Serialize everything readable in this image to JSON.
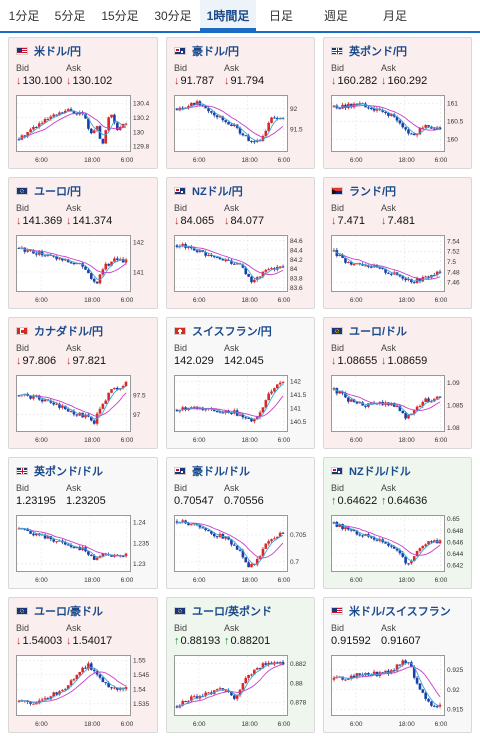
{
  "tabs": [
    {
      "label": "1分足",
      "active": false
    },
    {
      "label": "5分足",
      "active": false
    },
    {
      "label": "15分足",
      "active": false
    },
    {
      "label": "30分足",
      "active": false
    },
    {
      "label": "1時間足",
      "active": true
    },
    {
      "label": "日足",
      "active": false
    },
    {
      "label": "週足",
      "active": false
    },
    {
      "label": "月足",
      "active": false
    }
  ],
  "labels": {
    "bid": "Bid",
    "ask": "Ask"
  },
  "colors": {
    "up_candle": "#d8282a",
    "down_candle": "#1a3fa8",
    "ma_line": "#c83fc8",
    "down_card_bg": "#fbeeee",
    "up_card_bg": "#eef6ee",
    "down_arrow": "#cc2a2a",
    "up_arrow": "#1b8a2d"
  },
  "pairs": [
    {
      "name": "米ドル/円",
      "flag": "us",
      "dir": "down",
      "bid": "130.100",
      "ask": "130.102",
      "chart_data": {
        "type": "candlestick",
        "xticks": [
          "6:00",
          "18:00",
          "6:00"
        ],
        "yticks": [
          "130.4",
          "130.2",
          "130",
          "129.8"
        ],
        "ylim": [
          129.75,
          130.5
        ],
        "start": 129.9,
        "end": 130.1,
        "shape": [
          [
            0,
            129.9
          ],
          [
            0.12,
            130.05
          ],
          [
            0.3,
            130.2
          ],
          [
            0.45,
            130.3
          ],
          [
            0.6,
            130.25
          ],
          [
            0.68,
            129.95
          ],
          [
            0.72,
            130.1
          ],
          [
            0.78,
            129.8
          ],
          [
            0.85,
            130.3
          ],
          [
            0.92,
            130.05
          ],
          [
            1,
            130.1
          ]
        ]
      }
    },
    {
      "name": "豪ドル/円",
      "flag": "au",
      "dir": "down",
      "bid": "91.787",
      "ask": "91.794",
      "chart_data": {
        "type": "candlestick",
        "xticks": [
          "6:00",
          "18:00",
          "6:00"
        ],
        "yticks": [
          "92",
          "91.5"
        ],
        "ylim": [
          91.0,
          92.3
        ],
        "start": 92.0,
        "end": 91.79,
        "shape": [
          [
            0,
            92.0
          ],
          [
            0.2,
            92.15
          ],
          [
            0.4,
            91.8
          ],
          [
            0.55,
            91.55
          ],
          [
            0.65,
            91.3
          ],
          [
            0.72,
            91.15
          ],
          [
            0.8,
            91.25
          ],
          [
            0.88,
            91.75
          ],
          [
            1,
            91.79
          ]
        ]
      }
    },
    {
      "name": "英ポンド/円",
      "flag": "uk",
      "dir": "down",
      "bid": "160.282",
      "ask": "160.292",
      "chart_data": {
        "type": "candlestick",
        "xticks": [
          "6:00",
          "18:00",
          "6:00"
        ],
        "yticks": [
          "161",
          "160.5",
          "160"
        ],
        "ylim": [
          159.7,
          161.2
        ],
        "start": 160.9,
        "end": 160.28,
        "shape": [
          [
            0,
            160.9
          ],
          [
            0.25,
            160.95
          ],
          [
            0.45,
            160.75
          ],
          [
            0.55,
            160.65
          ],
          [
            0.65,
            160.3
          ],
          [
            0.75,
            160.1
          ],
          [
            0.85,
            160.4
          ],
          [
            1,
            160.28
          ]
        ]
      }
    },
    {
      "name": "ユーロ/円",
      "flag": "eu",
      "dir": "down",
      "bid": "141.369",
      "ask": "141.374",
      "chart_data": {
        "type": "candlestick",
        "xticks": [
          "6:00",
          "18:00",
          "6:00"
        ],
        "yticks": [
          "142",
          "141"
        ],
        "ylim": [
          140.4,
          142.2
        ],
        "start": 141.8,
        "end": 141.37,
        "shape": [
          [
            0,
            141.8
          ],
          [
            0.2,
            141.6
          ],
          [
            0.45,
            141.4
          ],
          [
            0.6,
            141.2
          ],
          [
            0.68,
            140.8
          ],
          [
            0.72,
            140.55
          ],
          [
            0.8,
            141.2
          ],
          [
            0.9,
            141.4
          ],
          [
            1,
            141.37
          ]
        ]
      }
    },
    {
      "name": "NZドル/円",
      "flag": "nz",
      "dir": "down",
      "bid": "84.065",
      "ask": "84.077",
      "chart_data": {
        "type": "candlestick",
        "xticks": [
          "6:00",
          "18:00",
          "6:00"
        ],
        "yticks": [
          "84.6",
          "84.4",
          "84.2",
          "84",
          "83.8",
          "83.6"
        ],
        "ylim": [
          83.55,
          84.7
        ],
        "start": 84.5,
        "end": 84.07,
        "shape": [
          [
            0,
            84.5
          ],
          [
            0.15,
            84.45
          ],
          [
            0.3,
            84.25
          ],
          [
            0.45,
            84.2
          ],
          [
            0.6,
            84.05
          ],
          [
            0.7,
            83.75
          ],
          [
            0.78,
            83.85
          ],
          [
            0.88,
            84.0
          ],
          [
            1,
            84.07
          ]
        ]
      }
    },
    {
      "name": "ランド/円",
      "flag": "za",
      "dir": "down",
      "bid": "7.471",
      "ask": "7.481",
      "chart_data": {
        "type": "candlestick",
        "xticks": [
          "6:00",
          "18:00",
          "6:00"
        ],
        "yticks": [
          "7.54",
          "7.52",
          "7.5",
          "7.48",
          "7.46"
        ],
        "ylim": [
          7.445,
          7.55
        ],
        "start": 7.52,
        "end": 7.48,
        "shape": [
          [
            0,
            7.52
          ],
          [
            0.1,
            7.5
          ],
          [
            0.3,
            7.495
          ],
          [
            0.5,
            7.48
          ],
          [
            0.65,
            7.47
          ],
          [
            0.75,
            7.462
          ],
          [
            0.85,
            7.468
          ],
          [
            1,
            7.48
          ]
        ]
      }
    },
    {
      "name": "カナダドル/円",
      "flag": "ca",
      "dir": "down",
      "bid": "97.806",
      "ask": "97.821",
      "chart_data": {
        "type": "candlestick",
        "xticks": [
          "6:00",
          "18:00",
          "6:00"
        ],
        "yticks": [
          "97.5",
          "97"
        ],
        "ylim": [
          96.6,
          98.0
        ],
        "start": 97.5,
        "end": 97.81,
        "shape": [
          [
            0,
            97.5
          ],
          [
            0.15,
            97.45
          ],
          [
            0.35,
            97.25
          ],
          [
            0.5,
            97.05
          ],
          [
            0.62,
            96.95
          ],
          [
            0.7,
            96.8
          ],
          [
            0.75,
            97.1
          ],
          [
            0.85,
            97.6
          ],
          [
            1,
            97.81
          ]
        ]
      }
    },
    {
      "name": "スイスフラン/円",
      "flag": "ch",
      "dir": "flat",
      "bid": "142.029",
      "ask": "142.045",
      "chart_data": {
        "type": "candlestick",
        "xticks": [
          "6:00",
          "18:00",
          "6:00"
        ],
        "yticks": [
          "142",
          "141.5",
          "141",
          "140.5"
        ],
        "ylim": [
          140.2,
          142.2
        ],
        "start": 140.95,
        "end": 142.03,
        "shape": [
          [
            0,
            140.95
          ],
          [
            0.2,
            141.0
          ],
          [
            0.4,
            140.9
          ],
          [
            0.55,
            140.85
          ],
          [
            0.65,
            140.6
          ],
          [
            0.72,
            140.5
          ],
          [
            0.8,
            141.0
          ],
          [
            0.88,
            141.6
          ],
          [
            1,
            142.03
          ]
        ]
      }
    },
    {
      "name": "ユーロ/ドル",
      "flag": "eu",
      "dir": "down",
      "bid": "1.08655",
      "ask": "1.08659",
      "chart_data": {
        "type": "candlestick",
        "xticks": [
          "6:00",
          "18:00",
          "6:00"
        ],
        "yticks": [
          "1.09",
          "1.085",
          "1.08"
        ],
        "ylim": [
          1.0795,
          1.0915
        ],
        "start": 1.0885,
        "end": 1.0866,
        "shape": [
          [
            0,
            1.0885
          ],
          [
            0.15,
            1.086
          ],
          [
            0.3,
            1.085
          ],
          [
            0.45,
            1.0855
          ],
          [
            0.6,
            1.085
          ],
          [
            0.68,
            1.082
          ],
          [
            0.75,
            1.0835
          ],
          [
            0.85,
            1.086
          ],
          [
            1,
            1.0866
          ]
        ]
      }
    },
    {
      "name": "英ポンド/ドル",
      "flag": "uk",
      "dir": "flat",
      "bid": "1.23195",
      "ask": "1.23205",
      "chart_data": {
        "type": "candlestick",
        "xticks": [
          "6:00",
          "18:00",
          "6:00"
        ],
        "yticks": [
          "1.24",
          "1.235",
          "1.23"
        ],
        "ylim": [
          1.2285,
          1.2415
        ],
        "start": 1.2385,
        "end": 1.232,
        "shape": [
          [
            0,
            1.2385
          ],
          [
            0.15,
            1.237
          ],
          [
            0.3,
            1.236
          ],
          [
            0.45,
            1.2345
          ],
          [
            0.6,
            1.2335
          ],
          [
            0.7,
            1.231
          ],
          [
            0.78,
            1.2325
          ],
          [
            0.9,
            1.232
          ],
          [
            1,
            1.232
          ]
        ]
      }
    },
    {
      "name": "豪ドル/ドル",
      "flag": "au",
      "dir": "flat",
      "bid": "0.70547",
      "ask": "0.70556",
      "chart_data": {
        "type": "candlestick",
        "xticks": [
          "6:00",
          "18:00",
          "6:00"
        ],
        "yticks": [
          "0.705",
          "0.7"
        ],
        "ylim": [
          0.6985,
          0.7085
        ],
        "start": 0.7075,
        "end": 0.7055,
        "shape": [
          [
            0,
            0.7075
          ],
          [
            0.15,
            0.707
          ],
          [
            0.3,
            0.7055
          ],
          [
            0.45,
            0.7045
          ],
          [
            0.6,
            0.702
          ],
          [
            0.68,
            0.699
          ],
          [
            0.75,
            0.7
          ],
          [
            0.85,
            0.704
          ],
          [
            1,
            0.7055
          ]
        ]
      }
    },
    {
      "name": "NZドル/ドル",
      "flag": "nz",
      "dir": "up",
      "bid": "0.64622",
      "ask": "0.64636",
      "chart_data": {
        "type": "candlestick",
        "xticks": [
          "6:00",
          "18:00",
          "6:00"
        ],
        "yticks": [
          "0.65",
          "0.648",
          "0.646",
          "0.644",
          "0.642"
        ],
        "ylim": [
          0.6412,
          0.6505
        ],
        "start": 0.6492,
        "end": 0.6462,
        "shape": [
          [
            0,
            0.6492
          ],
          [
            0.15,
            0.648
          ],
          [
            0.3,
            0.647
          ],
          [
            0.45,
            0.6462
          ],
          [
            0.6,
            0.6448
          ],
          [
            0.68,
            0.642
          ],
          [
            0.75,
            0.6435
          ],
          [
            0.85,
            0.6458
          ],
          [
            1,
            0.6462
          ]
        ]
      }
    },
    {
      "name": "ユーロ/豪ドル",
      "flag": "eu",
      "dir": "down",
      "bid": "1.54003",
      "ask": "1.54017",
      "chart_data": {
        "type": "candlestick",
        "xticks": [
          "6:00",
          "18:00",
          "6:00"
        ],
        "yticks": [
          "1.55",
          "1.545",
          "1.54",
          "1.535"
        ],
        "ylim": [
          1.5315,
          1.5515
        ],
        "start": 1.536,
        "end": 1.54,
        "shape": [
          [
            0,
            1.536
          ],
          [
            0.15,
            1.5345
          ],
          [
            0.3,
            1.538
          ],
          [
            0.45,
            1.5405
          ],
          [
            0.55,
            1.546
          ],
          [
            0.65,
            1.5485
          ],
          [
            0.75,
            1.5435
          ],
          [
            0.85,
            1.541
          ],
          [
            1,
            1.54
          ]
        ]
      }
    },
    {
      "name": "ユーロ/英ポンド",
      "flag": "eu",
      "dir": "up",
      "bid": "0.88193",
      "ask": "0.88201",
      "chart_data": {
        "type": "candlestick",
        "xticks": [
          "6:00",
          "18:00",
          "6:00"
        ],
        "yticks": [
          "0.882",
          "0.88",
          "0.878"
        ],
        "ylim": [
          0.8768,
          0.8828
        ],
        "start": 0.8776,
        "end": 0.882,
        "shape": [
          [
            0,
            0.8776
          ],
          [
            0.15,
            0.8785
          ],
          [
            0.3,
            0.879
          ],
          [
            0.45,
            0.8795
          ],
          [
            0.55,
            0.8785
          ],
          [
            0.65,
            0.8805
          ],
          [
            0.75,
            0.8815
          ],
          [
            0.85,
            0.8822
          ],
          [
            1,
            0.882
          ]
        ]
      }
    },
    {
      "name": "米ドル/スイスフラン",
      "flag": "us",
      "dir": "flat",
      "bid": "0.91592",
      "ask": "0.91607",
      "chart_data": {
        "type": "candlestick",
        "xticks": [
          "6:00",
          "18:00",
          "6:00"
        ],
        "yticks": [
          "0.925",
          "0.92",
          "0.915"
        ],
        "ylim": [
          0.9138,
          0.9285
        ],
        "start": 0.9225,
        "end": 0.9159,
        "shape": [
          [
            0,
            0.9225
          ],
          [
            0.2,
            0.9235
          ],
          [
            0.4,
            0.924
          ],
          [
            0.55,
            0.9245
          ],
          [
            0.65,
            0.9275
          ],
          [
            0.72,
            0.9265
          ],
          [
            0.8,
            0.92
          ],
          [
            0.9,
            0.9165
          ],
          [
            1,
            0.9159
          ]
        ]
      }
    }
  ]
}
